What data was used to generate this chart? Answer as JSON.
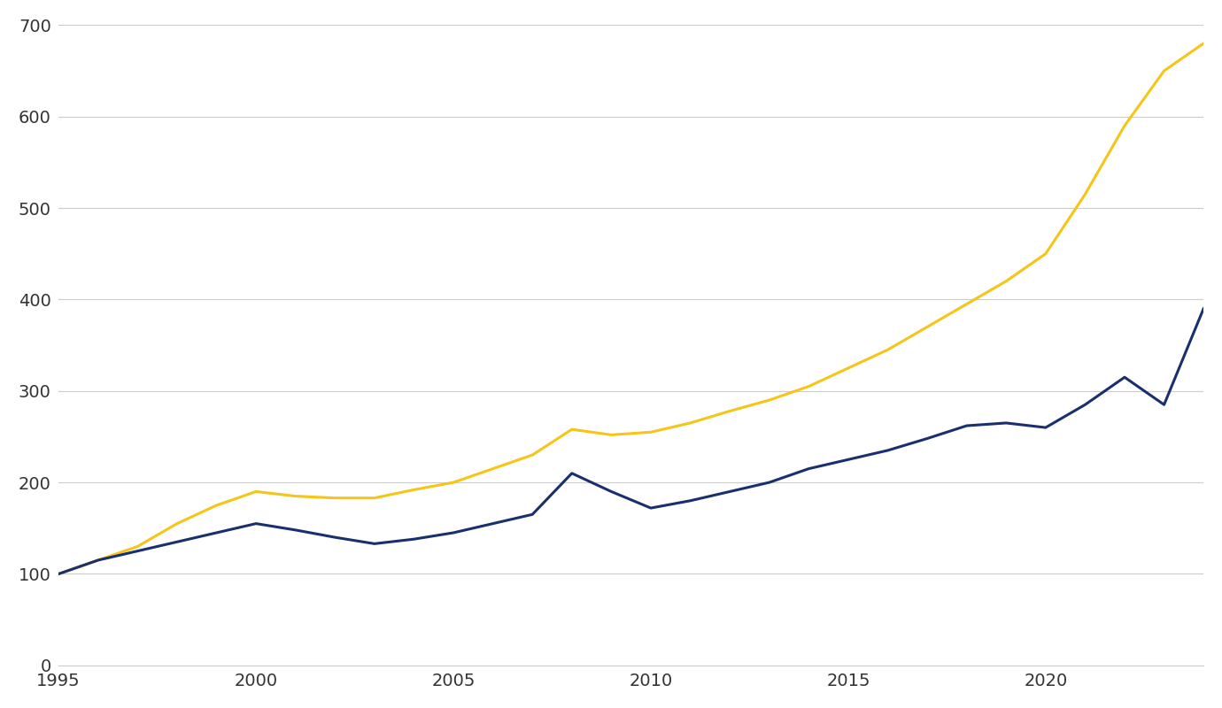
{
  "background_color": "#ffffff",
  "grid_color": "#cccccc",
  "navy_color": "#1a2f6e",
  "gold_color": "#f5c518",
  "line_width": 2.2,
  "ylim": [
    0,
    700
  ],
  "xlim": [
    1995,
    2024
  ],
  "yticks": [
    0,
    100,
    200,
    300,
    400,
    500,
    600,
    700
  ],
  "xticks": [
    1995,
    2000,
    2005,
    2010,
    2015,
    2020
  ],
  "years": [
    1995,
    1996,
    1997,
    1998,
    1999,
    2000,
    2001,
    2002,
    2003,
    2004,
    2005,
    2006,
    2007,
    2008,
    2009,
    2010,
    2011,
    2012,
    2013,
    2014,
    2015,
    2016,
    2017,
    2018,
    2019,
    2020,
    2021,
    2022,
    2023,
    2024
  ],
  "navy_values": [
    100,
    115,
    125,
    135,
    145,
    155,
    148,
    140,
    133,
    138,
    145,
    155,
    165,
    210,
    190,
    172,
    180,
    190,
    200,
    215,
    225,
    235,
    248,
    262,
    265,
    260,
    285,
    315,
    285,
    390
  ],
  "gold_values": [
    100,
    115,
    130,
    155,
    175,
    190,
    185,
    183,
    183,
    192,
    200,
    215,
    230,
    258,
    252,
    255,
    265,
    278,
    290,
    305,
    325,
    345,
    370,
    395,
    420,
    450,
    515,
    590,
    650,
    680
  ]
}
